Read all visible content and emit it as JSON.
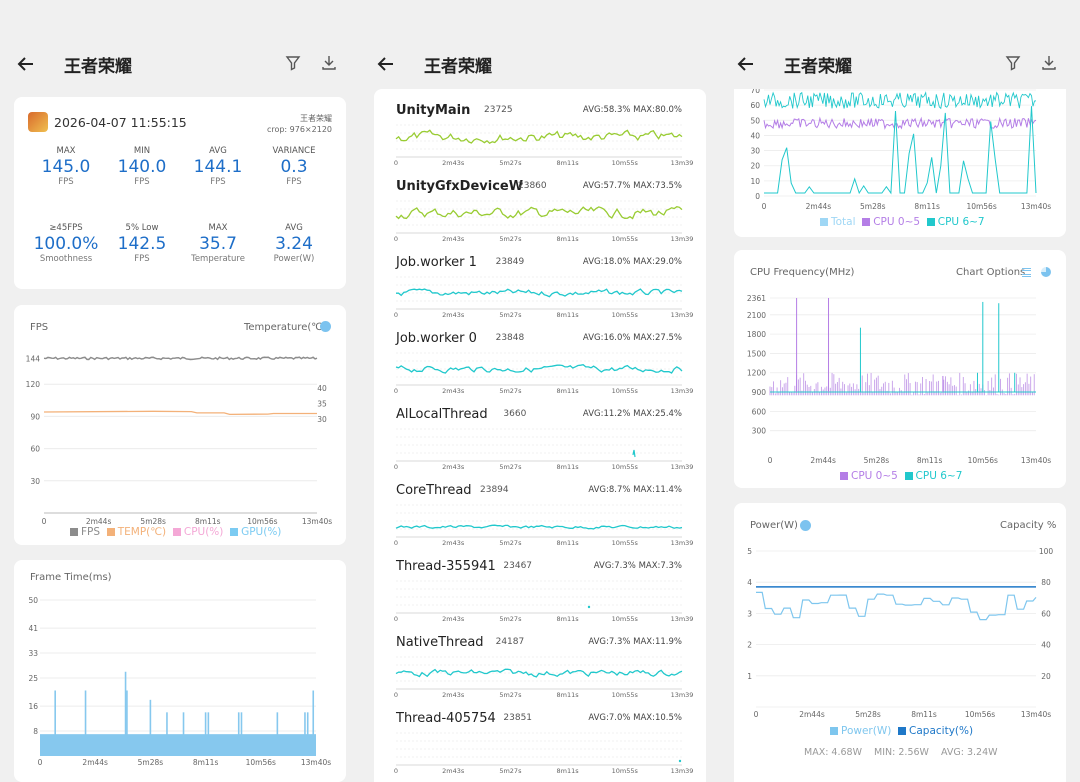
{
  "app_title": "王者荣耀",
  "colors": {
    "blue": "#1e6ec8",
    "fps": "#8c8c8c",
    "temp": "#f3b179",
    "cpu": "#f4a8d6",
    "gpu": "#7ccbf2",
    "cyan": "#21c8cc",
    "purple": "#b47ee6",
    "green": "#99cc33",
    "frame": "#86c8ee",
    "power": "#7ec6ee",
    "capacity": "#1f78c8"
  },
  "summary": {
    "datetime": "2026-04-07 11:55:15",
    "game": "王者荣耀",
    "crop": "crop: 976×2120",
    "stats_row1": [
      {
        "title": "MAX",
        "value": "145.0",
        "unit": "FPS"
      },
      {
        "title": "MIN",
        "value": "140.0",
        "unit": "FPS"
      },
      {
        "title": "AVG",
        "value": "144.1",
        "unit": "FPS"
      },
      {
        "title": "VARIANCE",
        "value": "0.3",
        "unit": "FPS"
      }
    ],
    "stats_row2": [
      {
        "title": "≥45FPS",
        "value": "100.0%",
        "unit": "Smoothness"
      },
      {
        "title": "5% Low",
        "value": "142.5",
        "unit": "FPS"
      },
      {
        "title": "MAX",
        "value": "35.7",
        "unit": "Temperature"
      },
      {
        "title": "AVG",
        "value": "3.24",
        "unit": "Power(W)"
      }
    ]
  },
  "fps_card": {
    "left_label": "FPS",
    "right_label": "Temperature(℃)",
    "legend": [
      "FPS",
      "TEMP(℃)",
      "CPU(%)",
      "GPU(%)"
    ]
  },
  "frame_card": {
    "label": "Frame Time(ms)"
  },
  "time_ticks": [
    "0",
    "2m44s",
    "5m28s",
    "8m11s",
    "10m56s",
    "13m40s"
  ],
  "thread_ticks": [
    "0",
    "2m43s",
    "5m27s",
    "8m11s",
    "10m55s",
    "13m39"
  ],
  "threads": [
    {
      "name": "UnityMain",
      "tid": "23725",
      "stats": "AVG:58.3% MAX:80.0%",
      "bold": true,
      "color": "green"
    },
    {
      "name": "UnityGfxDeviceW",
      "tid": "23860",
      "stats": "AVG:57.7% MAX:73.5%",
      "bold": true,
      "color": "green"
    },
    {
      "name": "Job.worker 1",
      "tid": "23849",
      "stats": "AVG:18.0% MAX:29.0%",
      "bold": false,
      "color": "cyan"
    },
    {
      "name": "Job.worker 0",
      "tid": "23848",
      "stats": "AVG:16.0% MAX:27.5%",
      "bold": false,
      "color": "cyan"
    },
    {
      "name": "AlLocalThread",
      "tid": "3660",
      "stats": "AVG:11.2% MAX:25.4%",
      "bold": false,
      "color": "cyan"
    },
    {
      "name": "CoreThread",
      "tid": "23894",
      "stats": "AVG:8.7% MAX:11.4%",
      "bold": false,
      "color": "cyan"
    },
    {
      "name": "Thread-355941",
      "tid": "23467",
      "stats": "AVG:7.3% MAX:7.3%",
      "bold": false,
      "color": "cyan"
    },
    {
      "name": "NativeThread",
      "tid": "24187",
      "stats": "AVG:7.3% MAX:11.9%",
      "bold": false,
      "color": "cyan"
    },
    {
      "name": "Thread-405754",
      "tid": "23851",
      "stats": "AVG:7.0% MAX:10.5%",
      "bold": false,
      "color": "cyan"
    }
  ],
  "cpu_usage_card": {
    "legend": [
      "Total",
      "CPU 0~5",
      "CPU 6~7"
    ]
  },
  "cpu_freq_card": {
    "title": "CPU Frequency(MHz)",
    "options": "Chart Options",
    "legend": [
      "CPU 0~5",
      "CPU 6~7"
    ]
  },
  "power_card": {
    "left_label": "Power(W)",
    "right_label": "Capacity %",
    "legend": [
      "Power(W)",
      "Capacity(%)"
    ],
    "footer": "MAX: 4.68W    MIN: 2.56W    AVG: 3.24W"
  },
  "chart_data": [
    {
      "type": "line",
      "title": "",
      "series": [
        {
          "name": "FPS",
          "values": [
            144,
            144,
            144,
            144,
            144
          ]
        },
        {
          "name": "TEMP(℃)",
          "values": [
            35.5,
            35.7,
            35.6,
            34.8,
            35.0
          ]
        }
      ],
      "categories": [
        "0",
        "2m44s",
        "5m28s",
        "8m11s",
        "10m56s"
      ],
      "ylim": [
        0,
        150
      ],
      "y2ticks": [
        30,
        35,
        40
      ]
    },
    {
      "type": "bar",
      "title": "Frame Time(ms)",
      "x": [
        "0",
        "2m44s",
        "5m28s",
        "8m11s",
        "10m56s",
        "13m40s"
      ],
      "series": [
        {
          "name": "Frame Time",
          "values": [
            7,
            7,
            7,
            7,
            7,
            7
          ]
        }
      ],
      "ylim": [
        0,
        50
      ],
      "yticks": [
        8,
        16,
        25,
        33,
        41,
        50
      ]
    },
    {
      "type": "line",
      "title": "",
      "series": [
        {
          "name": "CPU 0~5",
          "values": [
            50,
            52,
            48,
            53,
            50
          ]
        },
        {
          "name": "CPU 6~7",
          "values": [
            10,
            40,
            15,
            35,
            20
          ]
        }
      ],
      "yticks": [
        0,
        10,
        20,
        30,
        40,
        50,
        60,
        70
      ]
    },
    {
      "type": "line",
      "title": "CPU Frequency(MHz)",
      "series": [
        {
          "name": "CPU 0~5",
          "values": [
            1000,
            1000,
            1000,
            1000,
            1000
          ]
        },
        {
          "name": "CPU 6~7",
          "values": [
            900,
            900,
            900,
            900,
            900
          ]
        }
      ],
      "yticks": [
        300,
        600,
        900,
        1200,
        1500,
        1800,
        2100,
        2361
      ]
    },
    {
      "type": "line",
      "title": "Power(W)",
      "series": [
        {
          "name": "Power(W)",
          "values": [
            3.3,
            3.2,
            3.4,
            3.1,
            3.3
          ]
        },
        {
          "name": "Capacity(%)",
          "values": [
            77,
            77,
            77,
            77,
            76
          ]
        }
      ],
      "yticks": [
        2,
        3,
        4,
        5
      ],
      "y2ticks": [
        20,
        40,
        60,
        80,
        100
      ]
    }
  ]
}
